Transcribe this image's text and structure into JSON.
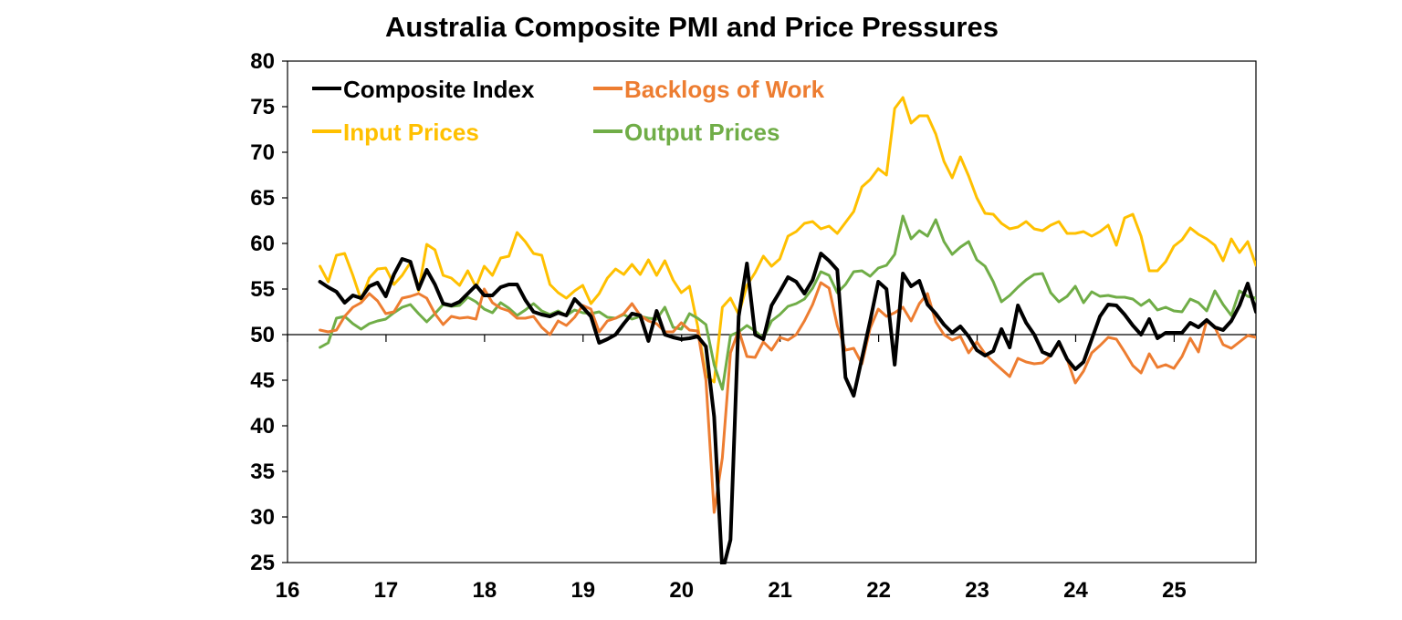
{
  "chart_data": {
    "type": "line",
    "title": "Australia Composite PMI and Price Pressures",
    "xlabel": "",
    "ylabel": "",
    "x_start": 2016.33,
    "x_step_months": 1,
    "xlim": [
      2016,
      2025.83
    ],
    "ylim": [
      25,
      80
    ],
    "yticks": [
      80,
      75,
      70,
      65,
      60,
      55,
      50,
      45,
      40,
      35,
      30,
      25
    ],
    "xticks": [
      16,
      17,
      18,
      19,
      20,
      21,
      22,
      23,
      24,
      25
    ],
    "reference_line": 50,
    "grid": false,
    "legend_position": "top-left",
    "series": [
      {
        "name": "Composite Index",
        "color": "#000000",
        "values": [
          55.8,
          55.2,
          54.7,
          53.5,
          54.3,
          54.0,
          55.3,
          55.7,
          54.2,
          56.6,
          58.3,
          58.0,
          55.0,
          57.1,
          55.5,
          53.4,
          53.2,
          53.6,
          54.5,
          55.4,
          54.3,
          54.3,
          55.2,
          55.5,
          55.5,
          53.8,
          52.5,
          52.2,
          52.0,
          52.4,
          52.1,
          53.9,
          53.0,
          52.0,
          49.1,
          49.5,
          50.0,
          51.2,
          52.3,
          52.1,
          49.3,
          52.6,
          50.0,
          49.7,
          49.5,
          49.6,
          49.8,
          48.7,
          41.0,
          24.0,
          27.5,
          52.0,
          57.8,
          50.0,
          49.5,
          53.2,
          54.7,
          56.3,
          55.8,
          54.5,
          56.0,
          58.9,
          58.1,
          57.1,
          45.3,
          43.3,
          47.4,
          51.5,
          55.8,
          55.0,
          46.7,
          56.7,
          55.3,
          55.9,
          53.3,
          52.3,
          51.1,
          50.2,
          50.9,
          49.8,
          48.3,
          47.7,
          48.2,
          50.6,
          48.6,
          53.2,
          51.3,
          50.0,
          48.1,
          47.7,
          49.2,
          47.3,
          46.2,
          47.0,
          49.5,
          52.0,
          53.3,
          53.2,
          52.2,
          51.0,
          50.0,
          51.7,
          49.6,
          50.2,
          50.2,
          50.2,
          51.3,
          50.8,
          51.6,
          50.8,
          50.5,
          51.5,
          53.2,
          55.6,
          52.5,
          52.7
        ]
      },
      {
        "name": "Backlogs of Work",
        "color": "#ED7D31",
        "values": [
          50.5,
          50.3,
          50.5,
          52.0,
          53.0,
          53.5,
          54.5,
          53.7,
          52.3,
          52.5,
          54.0,
          54.2,
          54.5,
          54.0,
          52.3,
          51.1,
          52.0,
          51.8,
          51.9,
          51.7,
          55.0,
          53.5,
          52.9,
          52.6,
          51.8,
          51.8,
          52.0,
          50.8,
          50.0,
          51.5,
          51.0,
          51.9,
          53.2,
          52.8,
          50.3,
          51.5,
          51.8,
          52.3,
          53.4,
          52.1,
          51.5,
          51.2,
          50.3,
          50.3,
          51.3,
          50.5,
          50.4,
          45.0,
          30.5,
          36.5,
          48.0,
          50.5,
          47.6,
          47.5,
          49.2,
          48.3,
          49.7,
          49.4,
          50.0,
          51.5,
          53.3,
          55.7,
          55.1,
          51.0,
          48.3,
          48.5,
          46.8,
          50.7,
          52.8,
          52.0,
          52.4,
          53.0,
          51.5,
          53.4,
          54.5,
          51.4,
          50.0,
          49.4,
          49.8,
          48.0,
          49.2,
          47.9,
          47.0,
          46.2,
          45.4,
          47.4,
          47.0,
          46.8,
          46.9,
          47.7,
          49.0,
          47.3,
          44.7,
          46.0,
          48.0,
          48.8,
          49.7,
          49.5,
          48.1,
          46.6,
          45.8,
          47.9,
          46.4,
          46.7,
          46.3,
          47.6,
          49.6,
          48.1,
          51.5,
          50.8,
          48.9,
          48.5,
          49.2,
          49.9,
          49.7,
          48.3
        ]
      },
      {
        "name": "Input Prices",
        "color": "#FFC000",
        "values": [
          57.5,
          55.8,
          58.7,
          58.9,
          56.5,
          53.8,
          56.2,
          57.2,
          57.3,
          55.5,
          56.5,
          57.9,
          54.8,
          59.9,
          59.3,
          56.5,
          56.2,
          55.4,
          57.0,
          55.2,
          57.5,
          56.5,
          58.4,
          58.6,
          61.2,
          60.2,
          58.9,
          58.7,
          55.5,
          54.6,
          54.0,
          54.8,
          55.4,
          53.4,
          54.5,
          56.2,
          57.2,
          56.6,
          57.7,
          56.6,
          58.2,
          56.5,
          58.1,
          56.0,
          54.6,
          55.3,
          50.9,
          45.5,
          44.8,
          53.0,
          54.0,
          52.2,
          55.4,
          56.8,
          58.6,
          57.5,
          58.3,
          60.8,
          61.3,
          62.2,
          62.4,
          61.6,
          61.9,
          61.1,
          62.3,
          63.5,
          66.2,
          67.0,
          68.2,
          67.5,
          74.8,
          76.0,
          73.2,
          74.0,
          74.0,
          72.0,
          69.0,
          67.2,
          69.5,
          67.4,
          65.0,
          63.3,
          63.2,
          62.2,
          61.6,
          61.8,
          62.4,
          61.6,
          61.4,
          62.0,
          62.4,
          61.1,
          61.1,
          61.3,
          60.8,
          61.3,
          62.0,
          59.8,
          62.8,
          63.2,
          60.8,
          57.0,
          57.0,
          58.0,
          59.7,
          60.4,
          61.7,
          61.0,
          60.5,
          59.8,
          58.1,
          60.5,
          59.0,
          60.2,
          57.6
        ]
      },
      {
        "name": "Output Prices",
        "color": "#70AD47",
        "values": [
          48.6,
          49.1,
          51.8,
          52.0,
          51.2,
          50.6,
          51.2,
          51.5,
          51.7,
          52.4,
          53.0,
          53.3,
          52.3,
          51.4,
          52.3,
          53.3,
          53.1,
          53.2,
          54.1,
          53.6,
          52.8,
          52.4,
          53.5,
          52.9,
          52.1,
          52.7,
          53.4,
          52.6,
          52.2,
          52.6,
          52.1,
          52.7,
          52.4,
          52.3,
          52.5,
          51.9,
          51.8,
          52.2,
          51.7,
          52.0,
          51.8,
          51.7,
          53.0,
          50.8,
          50.6,
          52.3,
          51.8,
          51.1,
          46.7,
          44.0,
          49.9,
          50.3,
          51.0,
          50.4,
          49.6,
          51.5,
          52.2,
          53.1,
          53.4,
          53.9,
          55.1,
          56.9,
          56.5,
          54.6,
          55.5,
          56.9,
          57.0,
          56.4,
          57.3,
          57.6,
          58.8,
          63.0,
          60.5,
          61.4,
          60.8,
          62.6,
          60.2,
          58.8,
          59.6,
          60.2,
          58.2,
          57.5,
          55.8,
          53.6,
          54.3,
          55.2,
          56.0,
          56.6,
          56.7,
          54.6,
          53.6,
          54.2,
          55.3,
          53.5,
          54.7,
          54.2,
          54.3,
          54.1,
          54.1,
          53.9,
          53.2,
          53.8,
          52.7,
          53.0,
          52.6,
          52.5,
          53.9,
          53.5,
          52.6,
          54.8,
          53.3,
          52.1,
          54.8,
          54.2,
          54.0,
          51.3
        ]
      }
    ]
  }
}
